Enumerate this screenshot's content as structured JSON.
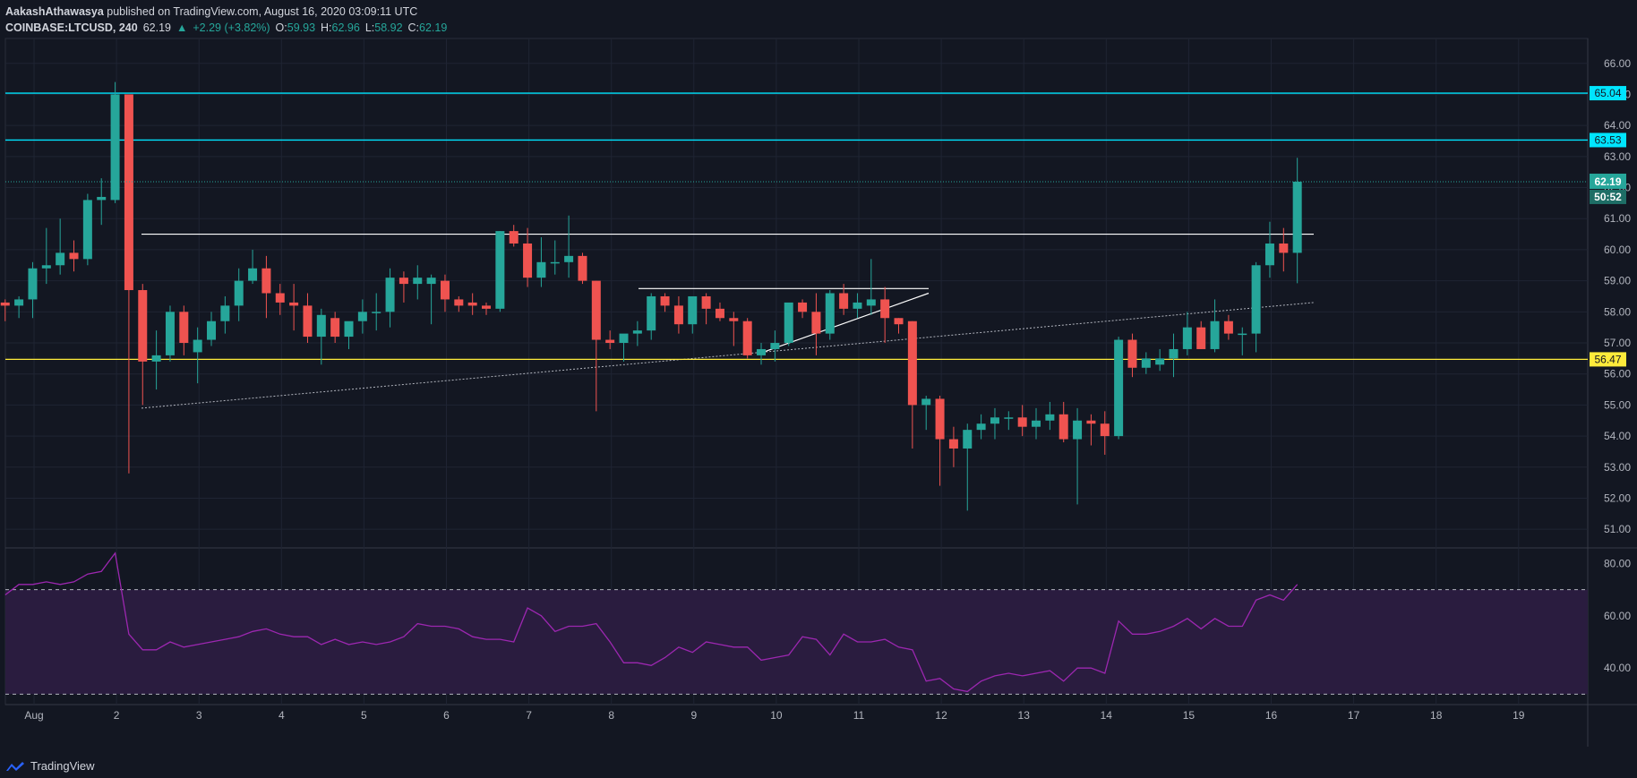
{
  "header": {
    "author": "AakashAthawasya",
    "published": " published on TradingView.com, August 16, 2020 03:09:11 UTC",
    "symbol": "COINBASE:LTCUSD, 240",
    "last": "62.19",
    "change": "+2.29 (+3.82%)",
    "o_label": "O:",
    "o": "59.93",
    "h_label": "H:",
    "h": "62.96",
    "l_label": "L:",
    "l": "58.92",
    "c_label": "C:",
    "c": "62.19"
  },
  "footer": {
    "brand": "TradingView"
  },
  "colors": {
    "bg": "#131722",
    "up": "#26a69a",
    "down": "#ef5350",
    "grid": "#1f2433",
    "cyan": "#00e5ff",
    "yellow": "#ffeb3b",
    "rsi": "#9c27b0",
    "rsi_band": "#2a1c3f",
    "text": "#b2b5be"
  },
  "chart_data": {
    "type": "candlestick",
    "symbol": "COINBASE:LTCUSD",
    "timeframe": "240",
    "price_axis": {
      "range": [
        50.4,
        66.8
      ],
      "ticks": [
        "51.00",
        "52.00",
        "53.00",
        "54.00",
        "55.00",
        "56.00",
        "57.00",
        "58.00",
        "59.00",
        "60.00",
        "61.00",
        "62.00",
        "63.00",
        "64.00",
        "65.00",
        "66.00"
      ]
    },
    "time_axis": {
      "start": "Aug",
      "ticks": [
        "Aug",
        "2",
        "3",
        "4",
        "5",
        "6",
        "7",
        "8",
        "9",
        "10",
        "11",
        "12",
        "13",
        "14",
        "15",
        "16",
        "17",
        "18",
        "19"
      ]
    },
    "horizontal_levels": [
      {
        "value": 65.04,
        "label": "65.04",
        "color": "#00e5ff"
      },
      {
        "value": 63.53,
        "label": "63.53",
        "color": "#00e5ff"
      },
      {
        "value": 56.47,
        "label": "56.47",
        "color": "#ffeb3b"
      }
    ],
    "last_price_label": "62.19",
    "countdown_label": "50:52",
    "candles_ohlc": [
      [
        58.3,
        58.4,
        57.7,
        58.2
      ],
      [
        58.2,
        58.5,
        57.8,
        58.4
      ],
      [
        58.4,
        59.6,
        57.8,
        59.4
      ],
      [
        59.4,
        60.7,
        58.9,
        59.5
      ],
      [
        59.5,
        61.0,
        59.2,
        59.9
      ],
      [
        59.9,
        60.3,
        59.3,
        59.7
      ],
      [
        59.7,
        61.8,
        59.5,
        61.6
      ],
      [
        61.6,
        62.3,
        60.8,
        61.7
      ],
      [
        61.6,
        65.4,
        61.5,
        65.0
      ],
      [
        65.0,
        65.0,
        52.8,
        58.7
      ],
      [
        58.7,
        58.9,
        55.0,
        56.4
      ],
      [
        56.4,
        57.4,
        55.5,
        56.6
      ],
      [
        56.6,
        58.2,
        56.4,
        58.0
      ],
      [
        58.0,
        58.2,
        56.6,
        57.0
      ],
      [
        56.7,
        57.5,
        55.7,
        57.1
      ],
      [
        57.1,
        58.0,
        56.9,
        57.7
      ],
      [
        57.7,
        58.5,
        57.3,
        58.2
      ],
      [
        58.2,
        59.4,
        57.7,
        59.0
      ],
      [
        59.0,
        60.0,
        58.9,
        59.4
      ],
      [
        59.4,
        59.8,
        57.8,
        58.6
      ],
      [
        58.6,
        58.9,
        57.9,
        58.3
      ],
      [
        58.3,
        58.9,
        57.4,
        58.2
      ],
      [
        58.2,
        58.6,
        57.0,
        57.2
      ],
      [
        57.2,
        58.1,
        56.3,
        57.9
      ],
      [
        57.8,
        58.0,
        57.0,
        57.2
      ],
      [
        57.2,
        57.6,
        56.8,
        57.7
      ],
      [
        57.7,
        58.4,
        57.3,
        58.0
      ],
      [
        58.0,
        58.6,
        57.4,
        58.0
      ],
      [
        58.0,
        59.4,
        57.5,
        59.1
      ],
      [
        59.1,
        59.3,
        58.3,
        58.9
      ],
      [
        58.9,
        59.5,
        58.4,
        59.1
      ],
      [
        58.9,
        59.2,
        57.6,
        59.1
      ],
      [
        59.0,
        59.2,
        58.0,
        58.4
      ],
      [
        58.4,
        58.5,
        58.0,
        58.2
      ],
      [
        58.3,
        58.6,
        57.9,
        58.2
      ],
      [
        58.2,
        58.3,
        57.9,
        58.1
      ],
      [
        58.1,
        60.6,
        58.0,
        60.6
      ],
      [
        60.6,
        60.8,
        60.1,
        60.2
      ],
      [
        60.2,
        60.7,
        58.8,
        59.1
      ],
      [
        59.1,
        60.4,
        58.8,
        59.6
      ],
      [
        59.6,
        60.3,
        59.2,
        59.6
      ],
      [
        59.6,
        61.1,
        59.1,
        59.8
      ],
      [
        59.8,
        59.9,
        58.9,
        59.0
      ],
      [
        59.0,
        59.0,
        54.8,
        57.1
      ],
      [
        57.1,
        57.4,
        56.8,
        57.0
      ],
      [
        57.0,
        57.2,
        56.4,
        57.3
      ],
      [
        57.3,
        57.7,
        56.9,
        57.4
      ],
      [
        57.4,
        58.6,
        57.1,
        58.5
      ],
      [
        58.5,
        58.6,
        58.0,
        58.2
      ],
      [
        58.2,
        58.5,
        57.3,
        57.6
      ],
      [
        57.6,
        58.5,
        57.3,
        58.5
      ],
      [
        58.5,
        58.6,
        57.6,
        58.1
      ],
      [
        58.1,
        58.3,
        57.7,
        57.8
      ],
      [
        57.8,
        58.0,
        56.9,
        57.7
      ],
      [
        57.7,
        57.8,
        56.5,
        56.6
      ],
      [
        56.6,
        57.0,
        56.3,
        56.8
      ],
      [
        56.8,
        57.4,
        56.4,
        57.0
      ],
      [
        57.0,
        58.2,
        56.9,
        58.3
      ],
      [
        58.3,
        58.4,
        57.8,
        58.0
      ],
      [
        58.0,
        58.6,
        56.6,
        57.3
      ],
      [
        57.3,
        58.7,
        57.1,
        58.6
      ],
      [
        58.6,
        58.9,
        57.9,
        58.1
      ],
      [
        58.1,
        58.6,
        57.8,
        58.3
      ],
      [
        58.2,
        59.7,
        57.9,
        58.4
      ],
      [
        58.4,
        58.8,
        57.0,
        57.8
      ],
      [
        57.8,
        57.8,
        57.3,
        57.6
      ],
      [
        57.7,
        57.7,
        53.6,
        55.0
      ],
      [
        55.0,
        55.3,
        54.2,
        55.2
      ],
      [
        55.2,
        55.3,
        52.4,
        53.9
      ],
      [
        53.9,
        54.3,
        53.0,
        53.6
      ],
      [
        53.6,
        54.4,
        51.6,
        54.2
      ],
      [
        54.2,
        54.7,
        53.9,
        54.4
      ],
      [
        54.4,
        54.9,
        53.9,
        54.6
      ],
      [
        54.6,
        54.8,
        54.2,
        54.6
      ],
      [
        54.6,
        55.0,
        54.0,
        54.3
      ],
      [
        54.3,
        54.9,
        53.9,
        54.5
      ],
      [
        54.5,
        55.1,
        54.2,
        54.7
      ],
      [
        54.7,
        55.1,
        53.8,
        53.9
      ],
      [
        53.9,
        54.9,
        51.8,
        54.5
      ],
      [
        54.5,
        54.7,
        53.7,
        54.4
      ],
      [
        54.4,
        54.8,
        53.4,
        54.0
      ],
      [
        54.0,
        57.2,
        53.9,
        57.1
      ],
      [
        57.1,
        57.3,
        55.9,
        56.2
      ],
      [
        56.2,
        56.7,
        56.0,
        56.5
      ],
      [
        56.3,
        56.8,
        56.1,
        56.5
      ],
      [
        56.5,
        57.3,
        55.9,
        56.8
      ],
      [
        56.8,
        58.0,
        56.6,
        57.5
      ],
      [
        57.5,
        57.7,
        56.8,
        56.8
      ],
      [
        56.8,
        58.4,
        56.7,
        57.7
      ],
      [
        57.7,
        57.9,
        57.1,
        57.3
      ],
      [
        57.3,
        57.5,
        56.6,
        57.3
      ],
      [
        57.3,
        59.6,
        56.7,
        59.5
      ],
      [
        59.5,
        60.9,
        59.1,
        60.2
      ],
      [
        60.2,
        60.7,
        59.3,
        59.9
      ],
      [
        59.9,
        62.96,
        58.92,
        62.19
      ]
    ],
    "rsi_axis": {
      "range": [
        26,
        86
      ],
      "ticks": [
        "40.00",
        "60.00",
        "80.00"
      ],
      "upper": 70,
      "lower": 30
    },
    "rsi_values": [
      68,
      72,
      72,
      73,
      72,
      73,
      76,
      77,
      84,
      53,
      47,
      47,
      50,
      48,
      49,
      50,
      51,
      52,
      54,
      55,
      53,
      52,
      52,
      49,
      51,
      49,
      50,
      49,
      50,
      52,
      57,
      56,
      56,
      55,
      52,
      51,
      51,
      50,
      63,
      60,
      54,
      56,
      56,
      57,
      50,
      42,
      42,
      41,
      44,
      48,
      46,
      50,
      49,
      48,
      48,
      43,
      44,
      45,
      52,
      51,
      45,
      53,
      50,
      50,
      51,
      48,
      47,
      35,
      36,
      32,
      31,
      35,
      37,
      38,
      37,
      38,
      39,
      35,
      40,
      40,
      38,
      58,
      53,
      53,
      54,
      56,
      59,
      55,
      59,
      56,
      56,
      66,
      68,
      66,
      72
    ]
  }
}
